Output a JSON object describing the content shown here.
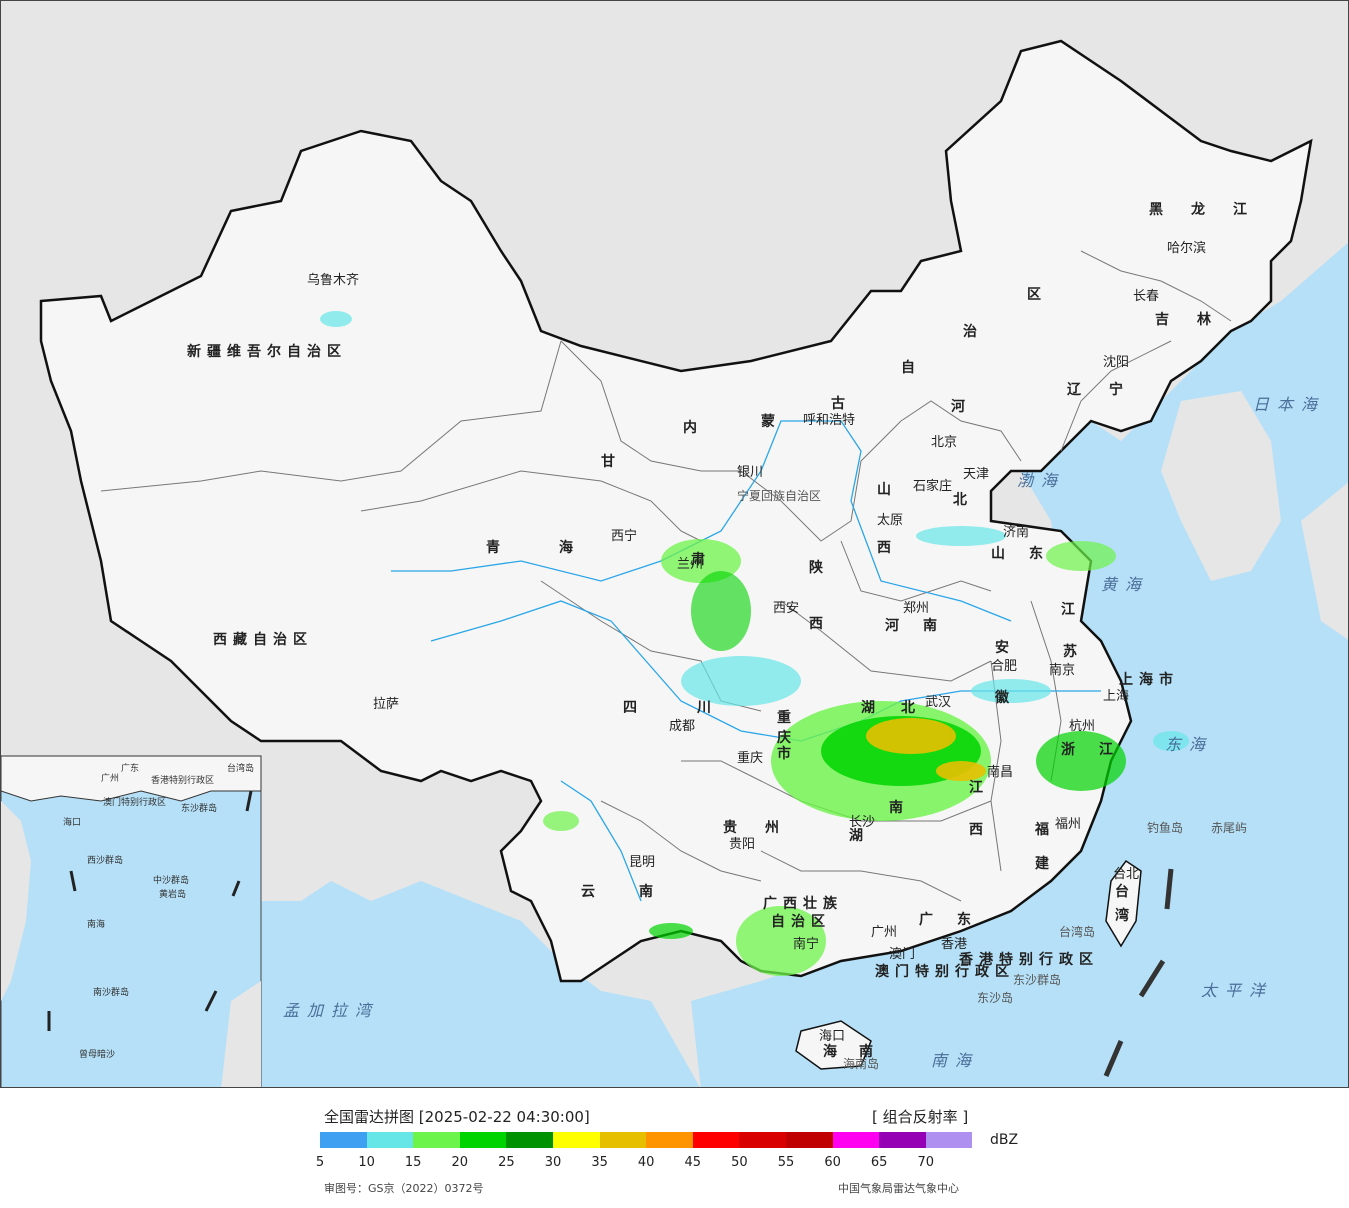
{
  "map": {
    "provinces": [
      {
        "name": "新疆维吾尔自治区"
      },
      {
        "name": "西藏自治区"
      },
      {
        "name_parts": [
          "青",
          "海"
        ]
      },
      {
        "name_parts": [
          "甘",
          "肃"
        ]
      },
      {
        "name_parts": [
          "内",
          "蒙",
          "古",
          "自",
          "治",
          "区"
        ]
      },
      {
        "name_parts": [
          "黑",
          "龙",
          "江"
        ]
      },
      {
        "name_parts": [
          "吉",
          "林"
        ]
      },
      {
        "name_parts": [
          "辽",
          "宁"
        ]
      },
      {
        "name_parts": [
          "河",
          "北"
        ]
      },
      {
        "name_parts": [
          "山",
          "西"
        ]
      },
      {
        "name_parts": [
          "陕",
          "西"
        ]
      },
      {
        "name_parts": [
          "山",
          "东"
        ]
      },
      {
        "name_parts": [
          "河",
          "南"
        ]
      },
      {
        "name_parts": [
          "江",
          "苏"
        ]
      },
      {
        "name_parts": [
          "安",
          "徽"
        ]
      },
      {
        "name_parts": [
          "湖",
          "北"
        ]
      },
      {
        "name_parts": [
          "四",
          "川"
        ]
      },
      {
        "name_parts": [
          "重",
          "庆",
          "市"
        ]
      },
      {
        "name_parts": [
          "浙",
          "江"
        ]
      },
      {
        "name_parts": [
          "湖",
          "南"
        ]
      },
      {
        "name_parts": [
          "江",
          "西"
        ]
      },
      {
        "name_parts": [
          "福",
          "建"
        ]
      },
      {
        "name_parts": [
          "贵",
          "州"
        ]
      },
      {
        "name_parts": [
          "云",
          "南"
        ]
      },
      {
        "name_parts": [
          "广",
          "东"
        ]
      },
      {
        "name_parts": [
          "海",
          "南"
        ]
      },
      {
        "name_parts": [
          "台",
          "湾"
        ]
      },
      {
        "name": "广西壮族",
        "name2": "自治区"
      },
      {
        "name": "宁夏回族自治区"
      },
      {
        "name": "上海市"
      },
      {
        "name": "香港特别行政区"
      },
      {
        "name": "澳门特别行政区"
      }
    ],
    "cities": [
      "乌鲁木齐",
      "拉萨",
      "西宁",
      "兰州",
      "银川",
      "呼和浩特",
      "西安",
      "成都",
      "重庆",
      "贵阳",
      "昆明",
      "南宁",
      "广州",
      "香港",
      "澳门",
      "海口",
      "长沙",
      "武汉",
      "南昌",
      "福州",
      "台北",
      "杭州",
      "上海",
      "南京",
      "合肥",
      "郑州",
      "济南",
      "太原",
      "石家庄",
      "北京",
      "天津",
      "沈阳",
      "长春",
      "哈尔滨"
    ],
    "seas": [
      "日本海",
      "渤海",
      "黄海",
      "东海",
      "南海",
      "太平洋",
      "孟加拉湾"
    ],
    "islands": [
      "钓鱼岛",
      "赤尾屿",
      "台湾岛",
      "海南岛",
      "东沙群岛",
      "东沙岛"
    ],
    "inset": {
      "labels": [
        "广东",
        "广州",
        "香港特别行政区",
        "澳门特别行政区",
        "海口",
        "东沙群岛",
        "西沙群岛",
        "中沙群岛",
        "黄岩岛",
        "南海",
        "南沙群岛",
        "曾母暗沙",
        "台湾岛"
      ]
    }
  },
  "legend": {
    "title": "全国雷达拼图 [2025-02-22 04:30:00]",
    "product": "[ 组合反射率 ]",
    "unit": "dBZ",
    "ticks": [
      "5",
      "10",
      "15",
      "20",
      "25",
      "30",
      "35",
      "40",
      "45",
      "50",
      "55",
      "60",
      "65",
      "70"
    ],
    "colors": [
      "#3f9ff0",
      "#67e6e8",
      "#6df44a",
      "#00d400",
      "#009200",
      "#ffff00",
      "#e6c000",
      "#ff9400",
      "#ff0000",
      "#d80000",
      "#c00000",
      "#ff00f0",
      "#9600b4",
      "#ad90f0"
    ],
    "review_number": "审图号：GS京（2022）0372号",
    "credit": "中国气象局雷达气象中心"
  }
}
